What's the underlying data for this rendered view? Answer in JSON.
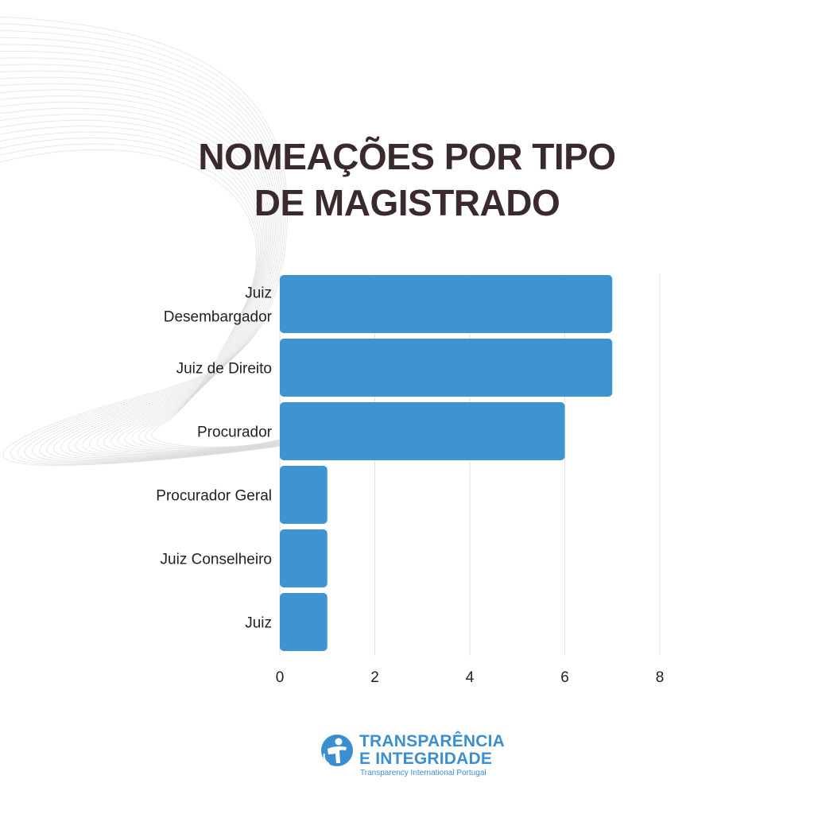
{
  "chart_data": {
    "type": "bar",
    "orientation": "horizontal",
    "title": [
      "NOMEAÇÕES POR TIPO",
      "DE MAGISTRADO"
    ],
    "categories": [
      "Juiz Desembargador",
      "Juiz de Direito",
      "Procurador",
      "Procurador Geral",
      "Juiz Conselheiro",
      "Juiz"
    ],
    "category_lines": [
      [
        "Juiz",
        "Desembargador"
      ],
      [
        "Juiz de Direito"
      ],
      [
        "Procurador"
      ],
      [
        "Procurador Geral"
      ],
      [
        "Juiz Conselheiro"
      ],
      [
        "Juiz"
      ]
    ],
    "values": [
      7,
      7,
      6,
      1,
      1,
      1
    ],
    "xlim": [
      0,
      8
    ],
    "xticks": [
      0,
      2,
      4,
      6,
      8
    ],
    "grid": true,
    "bar_color": "#3d94d1",
    "grid_color": "#e3e3e3"
  },
  "logo": {
    "line1": "TRANSPARÊNCIA",
    "line2": "E INTEGRIDADE",
    "subtitle": "Transparency International Portugal",
    "icon": "ti-globe-person-icon",
    "color": "#3a8fd0"
  }
}
